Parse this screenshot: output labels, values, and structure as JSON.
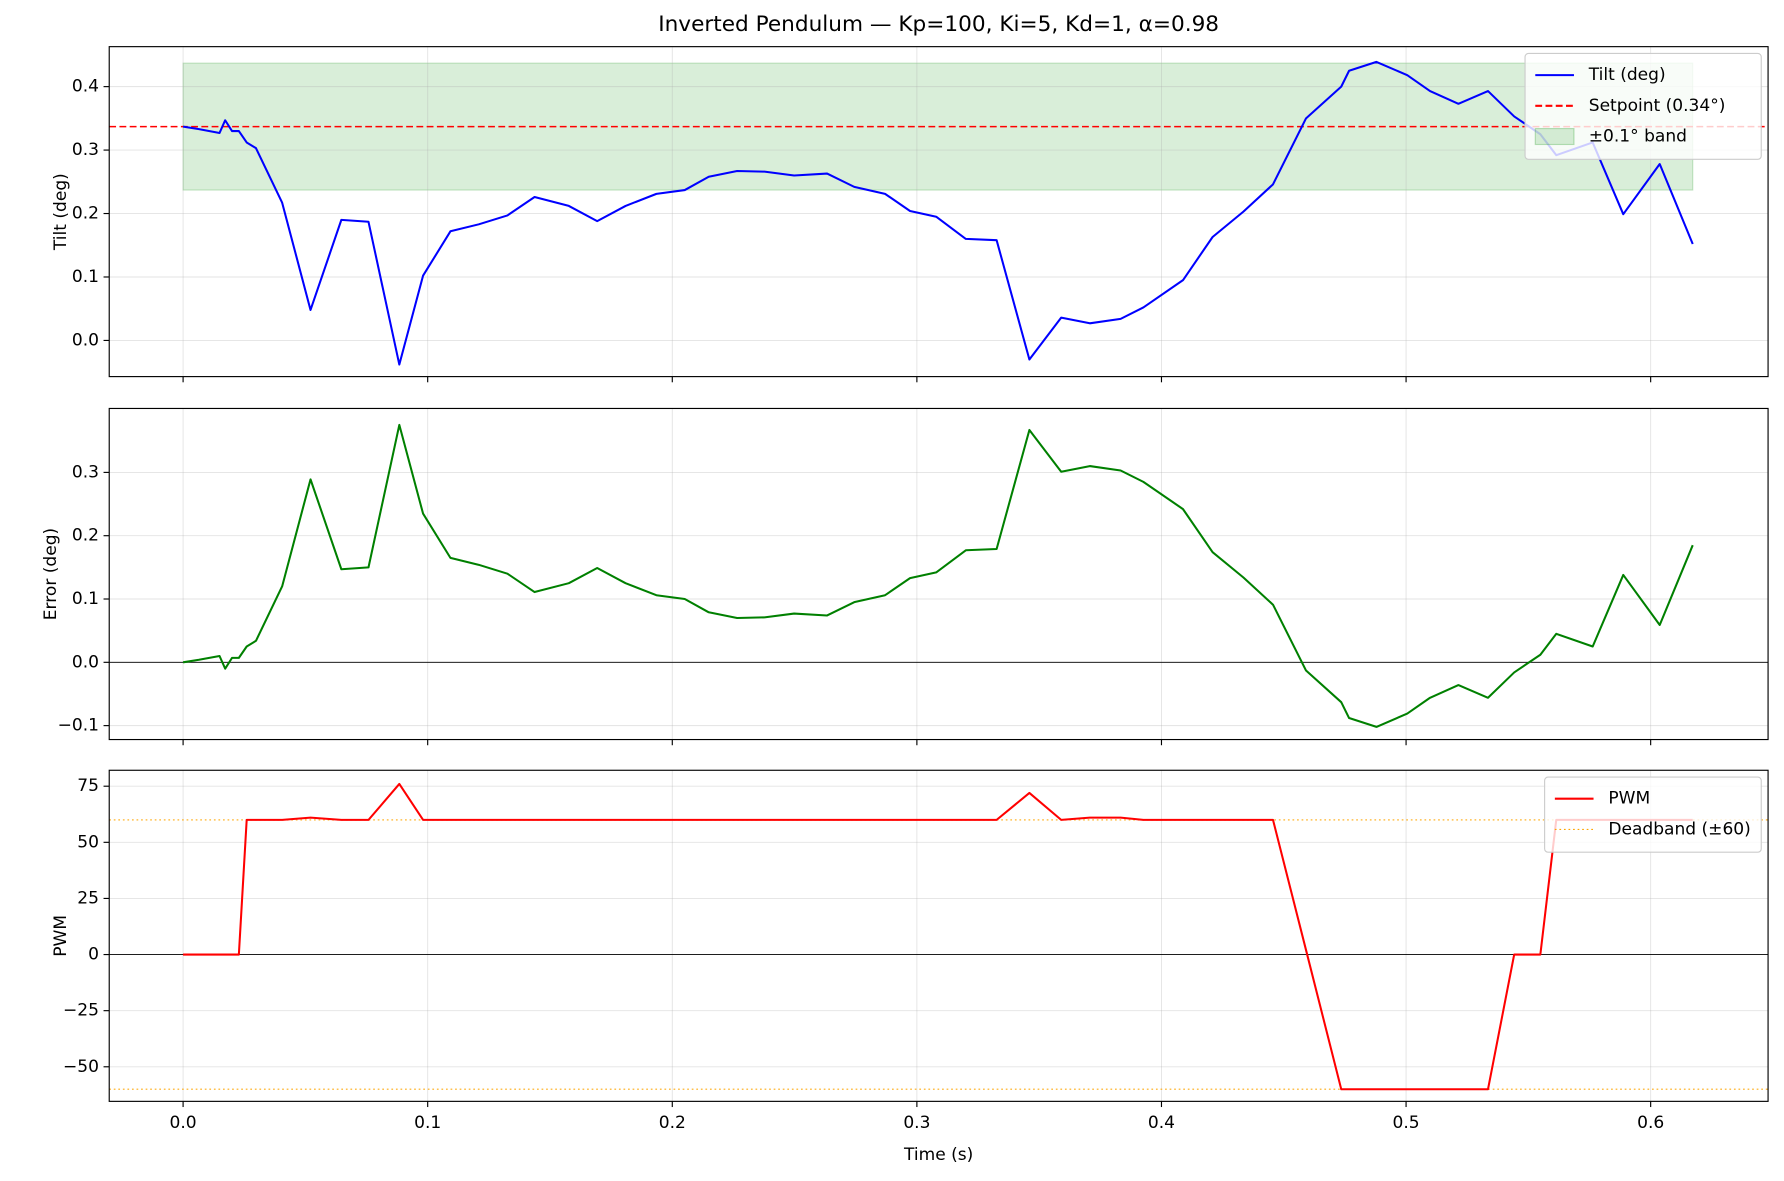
{
  "chart_data": [
    {
      "type": "line",
      "title": "Inverted Pendulum — Kp=100, Ki=5, Kd=1, α=0.98",
      "ylabel": "Tilt (deg)",
      "x": [
        0,
        0.0065,
        0.0149,
        0.0172,
        0.02,
        0.0228,
        0.026,
        0.0298,
        0.0405,
        0.0521,
        0.0647,
        0.0758,
        0.0884,
        0.0981,
        0.1093,
        0.1209,
        0.1326,
        0.1437,
        0.1577,
        0.1693,
        0.1809,
        0.1935,
        0.2051,
        0.2149,
        0.2265,
        0.2377,
        0.2498,
        0.2633,
        0.2744,
        0.287,
        0.2972,
        0.3079,
        0.32,
        0.3326,
        0.346,
        0.359,
        0.3707,
        0.3833,
        0.3926,
        0.4088,
        0.4209,
        0.4335,
        0.4456,
        0.4591,
        0.4735,
        0.4767,
        0.4879,
        0.5005,
        0.5098,
        0.5214,
        0.5335,
        0.5442,
        0.5549,
        0.5614,
        0.5763,
        0.5888,
        0.6037,
        0.6172
      ],
      "series": [
        {
          "name": "Tilt (deg)",
          "color": "#0000ff",
          "values": [
            0.337,
            0.333,
            0.327,
            0.347,
            0.33,
            0.33,
            0.312,
            0.303,
            0.217,
            0.048,
            0.19,
            0.187,
            -0.038,
            0.102,
            0.172,
            0.183,
            0.197,
            0.226,
            0.212,
            0.188,
            0.212,
            0.231,
            0.237,
            0.258,
            0.267,
            0.266,
            0.26,
            0.263,
            0.242,
            0.231,
            0.204,
            0.195,
            0.16,
            0.158,
            -0.03,
            0.036,
            0.027,
            0.034,
            0.052,
            0.095,
            0.163,
            0.203,
            0.246,
            0.35,
            0.4,
            0.425,
            0.439,
            0.418,
            0.393,
            0.373,
            0.393,
            0.353,
            0.325,
            0.292,
            0.312,
            0.199,
            0.278,
            0.152
          ]
        }
      ],
      "hlines": [
        {
          "name": "Setpoint (0.34°)",
          "values": [
            0.337
          ],
          "color": "#ff0000",
          "dash": "dashed"
        }
      ],
      "bands": [
        {
          "name": "±0.1° band",
          "ymin": 0.237,
          "ymax": 0.437,
          "color": "#2ca02c"
        }
      ],
      "xlim": [
        -0.0302,
        0.648
      ],
      "xticks": [
        {
          "value": 0,
          "label": "0.0"
        },
        0.1,
        0.2,
        0.3,
        0.4,
        0.5,
        0.6
      ],
      "show_xtick_labels": false,
      "ylim": [
        -0.057,
        0.463
      ],
      "yticks": [
        {
          "value": 0,
          "label": "0.0"
        },
        0.1,
        0.2,
        0.3,
        0.4
      ],
      "grid": true,
      "legend": "upper right"
    },
    {
      "type": "line",
      "ylabel": "Error (deg)",
      "x": [
        0,
        0.0065,
        0.0149,
        0.0172,
        0.02,
        0.0228,
        0.026,
        0.0298,
        0.0405,
        0.0521,
        0.0647,
        0.0758,
        0.0884,
        0.0981,
        0.1093,
        0.1209,
        0.1326,
        0.1437,
        0.1577,
        0.1693,
        0.1809,
        0.1935,
        0.2051,
        0.2149,
        0.2265,
        0.2377,
        0.2498,
        0.2633,
        0.2744,
        0.287,
        0.2972,
        0.3079,
        0.32,
        0.3326,
        0.346,
        0.359,
        0.3707,
        0.3833,
        0.3926,
        0.4088,
        0.4209,
        0.4335,
        0.4456,
        0.4591,
        0.4735,
        0.4767,
        0.4879,
        0.5005,
        0.5098,
        0.5214,
        0.5335,
        0.5442,
        0.5549,
        0.5614,
        0.5763,
        0.5888,
        0.6037,
        0.6172
      ],
      "series": [
        {
          "name": "Error (deg)",
          "color": "#008000",
          "values": [
            0,
            0.004,
            0.01,
            -0.01,
            0.007,
            0.007,
            0.025,
            0.034,
            0.12,
            0.289,
            0.147,
            0.15,
            0.375,
            0.235,
            0.165,
            0.154,
            0.14,
            0.111,
            0.125,
            0.149,
            0.125,
            0.106,
            0.1,
            0.079,
            0.07,
            0.071,
            0.077,
            0.074,
            0.095,
            0.106,
            0.133,
            0.142,
            0.177,
            0.179,
            0.367,
            0.301,
            0.31,
            0.303,
            0.285,
            0.242,
            0.174,
            0.134,
            0.091,
            -0.013,
            -0.063,
            -0.088,
            -0.102,
            -0.081,
            -0.056,
            -0.036,
            -0.056,
            -0.016,
            0.012,
            0.045,
            0.025,
            0.138,
            0.059,
            0.185
          ]
        }
      ],
      "hlines": [
        {
          "values": [
            0
          ],
          "color": "#000000",
          "dash": "solid"
        }
      ],
      "xlim": [
        -0.0302,
        0.648
      ],
      "xticks": [
        {
          "value": 0,
          "label": "0.0"
        },
        0.1,
        0.2,
        0.3,
        0.4,
        0.5,
        0.6
      ],
      "show_xtick_labels": false,
      "ylim": [
        -0.122,
        0.401
      ],
      "yticks": [
        {
          "value": -0.1,
          "label": "−0.1"
        },
        {
          "value": 0,
          "label": "0.0"
        },
        0.1,
        0.2,
        0.3
      ],
      "grid": true
    },
    {
      "type": "line",
      "ylabel": "PWM",
      "xlabel": "Time (s)",
      "x": [
        0,
        0.0065,
        0.0149,
        0.0172,
        0.02,
        0.0228,
        0.026,
        0.0298,
        0.0405,
        0.0521,
        0.0647,
        0.0758,
        0.0884,
        0.0981,
        0.1093,
        0.1209,
        0.1326,
        0.1437,
        0.1577,
        0.1693,
        0.1809,
        0.1935,
        0.2051,
        0.2149,
        0.2265,
        0.2377,
        0.2498,
        0.2633,
        0.2744,
        0.287,
        0.2972,
        0.3079,
        0.32,
        0.3326,
        0.346,
        0.359,
        0.3707,
        0.3833,
        0.3926,
        0.4088,
        0.4209,
        0.4335,
        0.4456,
        0.4591,
        0.4735,
        0.4767,
        0.4879,
        0.5005,
        0.5098,
        0.5214,
        0.5335,
        0.5442,
        0.5549,
        0.5614,
        0.5763,
        0.5888,
        0.6037,
        0.6172
      ],
      "series": [
        {
          "name": "PWM",
          "color": "#ff0000",
          "values": [
            0,
            0,
            0,
            0,
            0,
            0,
            60,
            60,
            60,
            61,
            60,
            60,
            76,
            60,
            60,
            60,
            60,
            60,
            60,
            60,
            60,
            60,
            60,
            60,
            60,
            60,
            60,
            60,
            60,
            60,
            60,
            60,
            60,
            60,
            72,
            60,
            61,
            61,
            60,
            60,
            60,
            60,
            60,
            2,
            -60,
            -60,
            -60,
            -60,
            -60,
            -60,
            -60,
            0,
            0,
            60,
            60,
            60,
            60,
            60
          ]
        }
      ],
      "hlines": [
        {
          "values": [
            0
          ],
          "color": "#000000",
          "dash": "solid"
        },
        {
          "name": "Deadband (±60)",
          "values": [
            60,
            -60
          ],
          "color": "#ffa500",
          "dash": "dotted"
        }
      ],
      "xlim": [
        -0.0302,
        0.648
      ],
      "xticks": [
        {
          "value": 0,
          "label": "0.0"
        },
        0.1,
        0.2,
        0.3,
        0.4,
        0.5,
        0.6
      ],
      "ylim": [
        -65.4,
        82.1
      ],
      "yticks": [
        {
          "value": -50,
          "label": "−50"
        },
        {
          "value": -25,
          "label": "−25"
        },
        0,
        25,
        50,
        75
      ],
      "grid": true,
      "legend": "upper right"
    }
  ]
}
